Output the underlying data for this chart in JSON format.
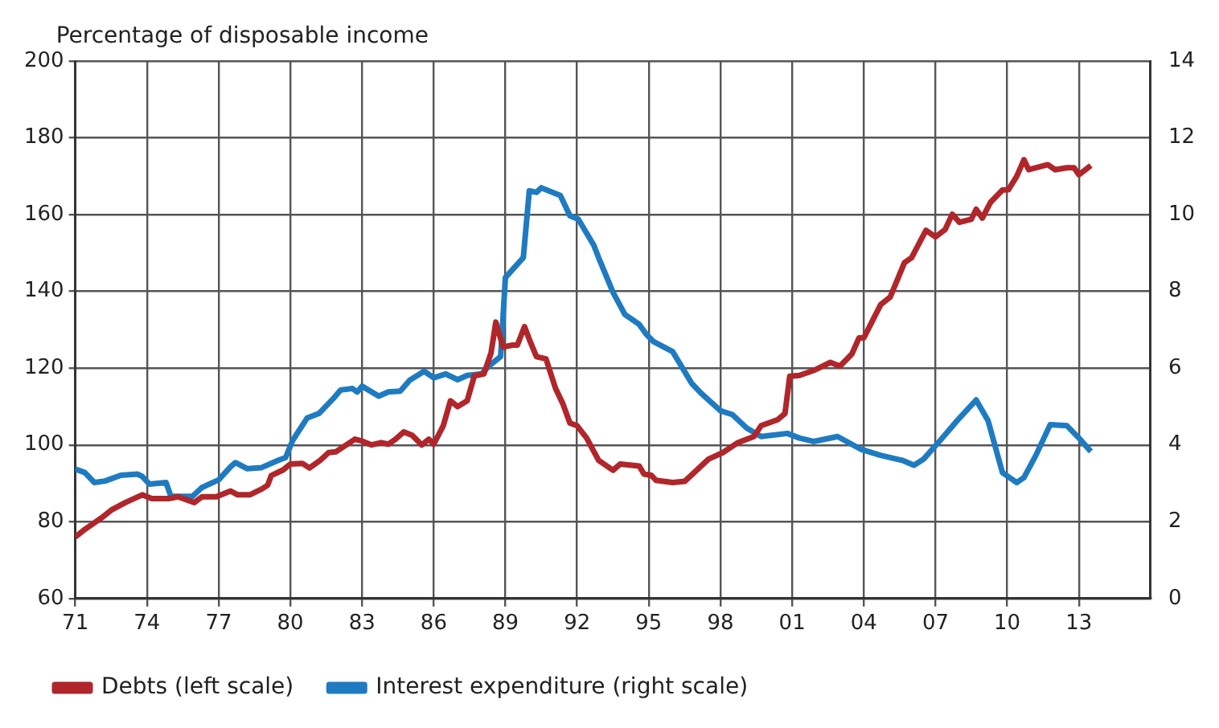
{
  "chart_data": {
    "type": "line",
    "ylabel": "Percentage of disposable income",
    "xlim": [
      1971,
      2016
    ],
    "xticks": [
      {
        "value": 1971,
        "label": "71"
      },
      {
        "value": 1974,
        "label": "74"
      },
      {
        "value": 1977,
        "label": "77"
      },
      {
        "value": 1980,
        "label": "80"
      },
      {
        "value": 1983,
        "label": "83"
      },
      {
        "value": 1986,
        "label": "86"
      },
      {
        "value": 1989,
        "label": "89"
      },
      {
        "value": 1992,
        "label": "92"
      },
      {
        "value": 1995,
        "label": "95"
      },
      {
        "value": 1998,
        "label": "98"
      },
      {
        "value": 2001,
        "label": "01"
      },
      {
        "value": 2004,
        "label": "04"
      },
      {
        "value": 2007,
        "label": "07"
      },
      {
        "value": 2010,
        "label": "10"
      },
      {
        "value": 2013,
        "label": "13"
      }
    ],
    "ylim": [
      60,
      200
    ],
    "yticks": [
      60,
      80,
      100,
      120,
      140,
      160,
      180,
      200
    ],
    "y2lim": [
      0,
      14
    ],
    "y2ticks": [
      0,
      2,
      4,
      6,
      8,
      10,
      12,
      14
    ],
    "grid": true,
    "legend": "bottom",
    "marker": "none",
    "line_style": "solid",
    "series": [
      {
        "name": "Debts (left scale)",
        "color": "#b0262a",
        "x": [
          1971,
          1971.4,
          1972.1,
          1972.5,
          1973.1,
          1973.8,
          1974.2,
          1974.9,
          1975.3,
          1975.98,
          1976.3,
          1976.9,
          1977.5,
          1977.8,
          1978.3,
          1978.8,
          1979.05,
          1979.2,
          1979.7,
          1980,
          1980.5,
          1980.8,
          1981.25,
          1981.6,
          1981.9,
          1982.7,
          1983,
          1983.4,
          1983.8,
          1984.1,
          1984.4,
          1984.75,
          1985.1,
          1985.5,
          1985.8,
          1986,
          1986.4,
          1986.7,
          1987,
          1987.4,
          1987.7,
          1988.1,
          1988.4,
          1988.6,
          1988.9,
          1989.3,
          1989.5,
          1989.8,
          1990,
          1990.3,
          1990.7,
          1991.1,
          1991.4,
          1991.7,
          1992,
          1992.4,
          1992.9,
          1993.5,
          1993.8,
          1994.6,
          1994.8,
          1995.1,
          1995.3,
          1996,
          1996.5,
          1996.9,
          1997.5,
          1998.1,
          1998.7,
          1999.4,
          1999.7,
          2000.4,
          2000.7,
          2000.9,
          2001.3,
          2001.9,
          2002.6,
          2003,
          2003.5,
          2003.8,
          2004,
          2004.7,
          2005.1,
          2005.7,
          2006,
          2006.6,
          2007,
          2007.4,
          2007.7,
          2008,
          2008.5,
          2008.7,
          2008.96,
          2009.3,
          2009.8,
          2010.05,
          2010.4,
          2010.7,
          2010.9,
          2011.7,
          2012,
          2012.5,
          2012.8,
          2013,
          2013.5
        ],
        "values": [
          76,
          78,
          81,
          83,
          85,
          87,
          86,
          86,
          86.5,
          85,
          86.5,
          86.5,
          88,
          87,
          87,
          88.5,
          89.5,
          92,
          93.5,
          95,
          95.2,
          94,
          96,
          98,
          98.2,
          101.5,
          101,
          100,
          100.6,
          100.2,
          101.5,
          103.4,
          102.5,
          100,
          101.5,
          100.2,
          105,
          111.5,
          110,
          111.5,
          118,
          118.5,
          124,
          132,
          125.5,
          126,
          126,
          130.8,
          127.5,
          123,
          122.4,
          114.7,
          110.8,
          105.7,
          105,
          101.8,
          96,
          93.4,
          95,
          94.5,
          92.4,
          92.1,
          90.8,
          90.2,
          90.5,
          92.8,
          96.3,
          98,
          100.5,
          102.2,
          105,
          106.6,
          108.2,
          117.9,
          118.1,
          119.4,
          121.5,
          120.5,
          123.7,
          127.9,
          127.9,
          136.5,
          138.5,
          147.5,
          148.8,
          155.9,
          154.2,
          156.1,
          160.1,
          158,
          158.8,
          161.4,
          159.1,
          163.2,
          166.4,
          166.5,
          170,
          174.3,
          171.7,
          173,
          171.7,
          172.2,
          172.2,
          170.4,
          172.8
        ]
      },
      {
        "name": "Interest expenditure (right scale)",
        "color": "#1f7bc1",
        "axis": "y2",
        "x": [
          1971,
          1971.4,
          1971.8,
          1972.25,
          1972.9,
          1973.6,
          1973.8,
          1974.1,
          1974.8,
          1975,
          1975.9,
          1976.3,
          1977,
          1977.5,
          1977.7,
          1978.2,
          1978.8,
          1979.5,
          1979.8,
          1980.1,
          1980.7,
          1981.2,
          1981.8,
          1982.1,
          1982.6,
          1982.8,
          1983,
          1983.7,
          1984.1,
          1984.6,
          1985,
          1985.6,
          1986,
          1986.5,
          1987,
          1987.4,
          1988,
          1988.3,
          1988.8,
          1989,
          1989.75,
          1990,
          1990.3,
          1990.5,
          1991.3,
          1991.7,
          1992.05,
          1992.7,
          1992.9,
          1993.5,
          1994,
          1994.6,
          1994.9,
          1995.2,
          1996,
          1996.8,
          1997.2,
          1998,
          1998.5,
          1999.1,
          1999.7,
          2000.8,
          2001.3,
          2001.9,
          2002.9,
          2003.9,
          2004.7,
          2005.6,
          2006.1,
          2006.5,
          2007.2,
          2007.9,
          2008.7,
          2009.2,
          2009.8,
          2010.4,
          2010.7,
          2011.2,
          2011.8,
          2012.5,
          2013,
          2013.5
        ],
        "values": [
          3.37,
          3.28,
          3.02,
          3.06,
          3.21,
          3.24,
          3.18,
          2.98,
          3.02,
          2.66,
          2.66,
          2.89,
          3.09,
          3.43,
          3.54,
          3.38,
          3.41,
          3.6,
          3.67,
          4.12,
          4.7,
          4.82,
          5.21,
          5.43,
          5.47,
          5.38,
          5.53,
          5.27,
          5.38,
          5.4,
          5.69,
          5.92,
          5.75,
          5.85,
          5.7,
          5.81,
          5.85,
          6.05,
          6.3,
          8.36,
          8.88,
          10.62,
          10.58,
          10.7,
          10.5,
          9.97,
          9.88,
          9.2,
          8.88,
          7.98,
          7.4,
          7.14,
          6.88,
          6.69,
          6.43,
          5.6,
          5.34,
          4.89,
          4.79,
          4.44,
          4.22,
          4.3,
          4.18,
          4.09,
          4.22,
          3.88,
          3.73,
          3.6,
          3.47,
          3.63,
          4.12,
          4.63,
          5.17,
          4.63,
          3.28,
          3.02,
          3.15,
          3.73,
          4.53,
          4.5,
          4.18,
          3.83
        ]
      }
    ]
  }
}
